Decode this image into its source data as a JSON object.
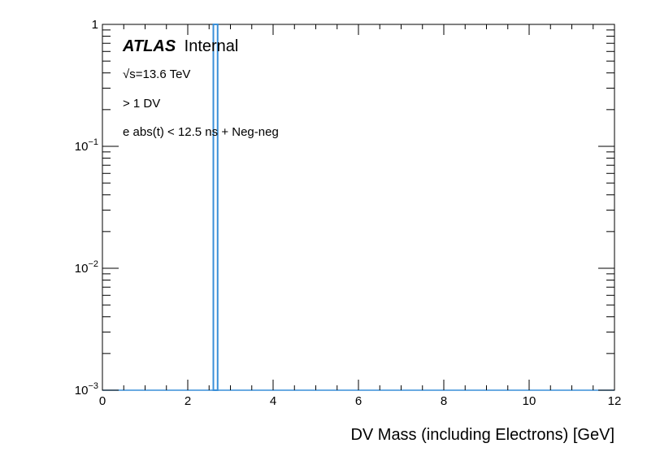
{
  "chart_data": {
    "type": "bar",
    "title": "",
    "xlabel": "DV Mass (including Electrons) [GeV]",
    "ylabel": "",
    "xlim": [
      0,
      12
    ],
    "ylim": [
      0.001,
      1
    ],
    "yscale": "log",
    "x_ticks": [
      "0",
      "2",
      "4",
      "6",
      "8",
      "10",
      "12"
    ],
    "y_ticks": [
      {
        "base": "1",
        "exp": ""
      },
      {
        "base": "10",
        "exp": "−1"
      },
      {
        "base": "10",
        "exp": "−2"
      },
      {
        "base": "10",
        "exp": "−3"
      }
    ],
    "bins": [
      {
        "x_low": 2.6,
        "x_high": 2.7,
        "value": 1.0
      }
    ],
    "bar_color": "#3a8fd8",
    "grid": false,
    "annotations": {
      "atlas_label": "ATLAS",
      "atlas_status": "Internal",
      "energy_sqrt": "√",
      "energy": "s=13.6 TeV",
      "selection": "> 1 DV",
      "cut": "e abs(t) < 12.5 ns + Neg-neg"
    }
  }
}
